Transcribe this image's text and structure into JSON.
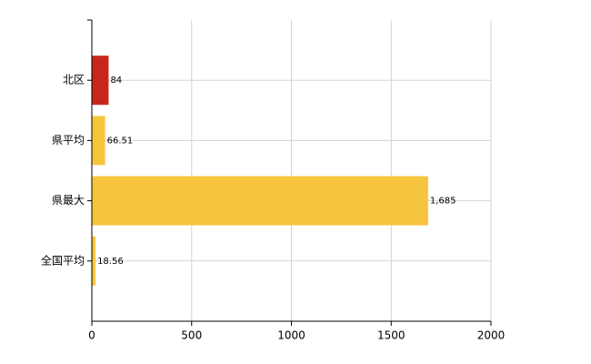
{
  "chart_data": {
    "type": "hbar",
    "categories": [
      "北区",
      "県平均",
      "県最大",
      "全国平均"
    ],
    "values": [
      84,
      66.51,
      1685,
      18.56
    ],
    "value_labels": [
      "84",
      "66.51",
      "1,685",
      "18.56"
    ],
    "colors": [
      "#c9261b",
      "#f7c43d",
      "#f7c43d",
      "#f7c43d"
    ],
    "xlim": [
      0,
      2000
    ],
    "xticks": [
      0,
      500,
      1000,
      1500,
      2000
    ],
    "grid": true
  }
}
